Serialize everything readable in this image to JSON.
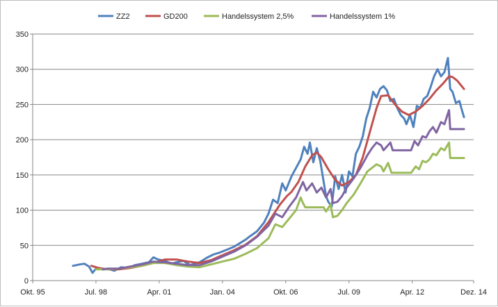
{
  "chart_data": {
    "type": "line",
    "title": "",
    "xlabel": "",
    "ylabel": "",
    "ylim": [
      0,
      350
    ],
    "y_ticks": [
      "0",
      "50",
      "100",
      "150",
      "200",
      "250",
      "300",
      "350"
    ],
    "x_ticks": [
      "Okt. 95",
      "Jul. 98",
      "Apr. 01",
      "Jan. 04",
      "Okt. 06",
      "Jul. 09",
      "Apr. 12",
      "Dez. 14"
    ],
    "x_tick_years": [
      1995.75,
      1998.5,
      2001.25,
      2004.0,
      2006.75,
      2009.5,
      2012.25,
      2014.92
    ],
    "grid": true,
    "legend_position": "top",
    "series": [
      {
        "name": "ZZ2",
        "color": "#4f81bd",
        "points": [
          [
            1997.5,
            21
          ],
          [
            1997.8,
            23
          ],
          [
            1998.0,
            24
          ],
          [
            1998.2,
            20
          ],
          [
            1998.35,
            11
          ],
          [
            1998.5,
            17
          ],
          [
            1998.8,
            16
          ],
          [
            1999.0,
            17
          ],
          [
            1999.3,
            14
          ],
          [
            1999.6,
            19
          ],
          [
            1999.9,
            18
          ],
          [
            2000.2,
            22
          ],
          [
            2000.5,
            24
          ],
          [
            2000.8,
            26
          ],
          [
            2001.0,
            33
          ],
          [
            2001.2,
            30
          ],
          [
            2001.5,
            28
          ],
          [
            2001.8,
            24
          ],
          [
            2002.0,
            26
          ],
          [
            2002.3,
            28
          ],
          [
            2002.6,
            22
          ],
          [
            2002.8,
            24
          ],
          [
            2003.0,
            26
          ],
          [
            2003.3,
            32
          ],
          [
            2003.6,
            37
          ],
          [
            2003.9,
            40
          ],
          [
            2004.2,
            44
          ],
          [
            2004.5,
            48
          ],
          [
            2004.8,
            54
          ],
          [
            2005.0,
            58
          ],
          [
            2005.2,
            63
          ],
          [
            2005.5,
            70
          ],
          [
            2005.8,
            82
          ],
          [
            2006.0,
            95
          ],
          [
            2006.2,
            115
          ],
          [
            2006.4,
            110
          ],
          [
            2006.6,
            138
          ],
          [
            2006.75,
            128
          ],
          [
            2007.0,
            148
          ],
          [
            2007.2,
            160
          ],
          [
            2007.4,
            172
          ],
          [
            2007.55,
            190
          ],
          [
            2007.7,
            180
          ],
          [
            2007.8,
            196
          ],
          [
            2007.95,
            168
          ],
          [
            2008.1,
            188
          ],
          [
            2008.25,
            170
          ],
          [
            2008.4,
            140
          ],
          [
            2008.5,
            120
          ],
          [
            2008.6,
            112
          ],
          [
            2008.75,
            105
          ],
          [
            2008.9,
            148
          ],
          [
            2009.05,
            130
          ],
          [
            2009.2,
            150
          ],
          [
            2009.35,
            125
          ],
          [
            2009.5,
            155
          ],
          [
            2009.65,
            148
          ],
          [
            2009.8,
            180
          ],
          [
            2009.95,
            190
          ],
          [
            2010.1,
            205
          ],
          [
            2010.25,
            230
          ],
          [
            2010.4,
            245
          ],
          [
            2010.55,
            268
          ],
          [
            2010.7,
            260
          ],
          [
            2010.85,
            272
          ],
          [
            2011.0,
            276
          ],
          [
            2011.15,
            270
          ],
          [
            2011.3,
            255
          ],
          [
            2011.45,
            258
          ],
          [
            2011.6,
            245
          ],
          [
            2011.75,
            235
          ],
          [
            2011.9,
            230
          ],
          [
            2012.0,
            222
          ],
          [
            2012.15,
            235
          ],
          [
            2012.3,
            218
          ],
          [
            2012.45,
            248
          ],
          [
            2012.6,
            245
          ],
          [
            2012.75,
            258
          ],
          [
            2012.9,
            262
          ],
          [
            2013.05,
            275
          ],
          [
            2013.2,
            290
          ],
          [
            2013.35,
            300
          ],
          [
            2013.5,
            290
          ],
          [
            2013.65,
            296
          ],
          [
            2013.8,
            316
          ],
          [
            2013.9,
            272
          ],
          [
            2014.0,
            268
          ],
          [
            2014.15,
            252
          ],
          [
            2014.3,
            255
          ],
          [
            2014.4,
            243
          ],
          [
            2014.5,
            232
          ]
        ]
      },
      {
        "name": "GD200",
        "color": "#c0504d",
        "points": [
          [
            1998.3,
            21
          ],
          [
            1998.6,
            18
          ],
          [
            1999.0,
            16
          ],
          [
            1999.5,
            16
          ],
          [
            2000.0,
            18
          ],
          [
            2000.5,
            21
          ],
          [
            2001.0,
            25
          ],
          [
            2001.5,
            30
          ],
          [
            2002.0,
            30
          ],
          [
            2002.5,
            27
          ],
          [
            2003.0,
            25
          ],
          [
            2003.5,
            29
          ],
          [
            2004.0,
            36
          ],
          [
            2004.5,
            43
          ],
          [
            2005.0,
            51
          ],
          [
            2005.5,
            63
          ],
          [
            2006.0,
            83
          ],
          [
            2006.5,
            108
          ],
          [
            2006.8,
            120
          ],
          [
            2007.0,
            126
          ],
          [
            2007.3,
            140
          ],
          [
            2007.6,
            162
          ],
          [
            2007.9,
            178
          ],
          [
            2008.1,
            182
          ],
          [
            2008.3,
            175
          ],
          [
            2008.6,
            158
          ],
          [
            2008.9,
            143
          ],
          [
            2009.2,
            135
          ],
          [
            2009.5,
            140
          ],
          [
            2009.8,
            150
          ],
          [
            2010.1,
            175
          ],
          [
            2010.4,
            210
          ],
          [
            2010.7,
            245
          ],
          [
            2010.9,
            262
          ],
          [
            2011.2,
            263
          ],
          [
            2011.5,
            250
          ],
          [
            2011.8,
            240
          ],
          [
            2012.1,
            235
          ],
          [
            2012.4,
            240
          ],
          [
            2012.7,
            248
          ],
          [
            2013.0,
            258
          ],
          [
            2013.3,
            270
          ],
          [
            2013.6,
            280
          ],
          [
            2013.85,
            290
          ],
          [
            2014.0,
            289
          ],
          [
            2014.2,
            284
          ],
          [
            2014.5,
            272
          ]
        ]
      },
      {
        "name": "Handelssystem 2,5%",
        "color": "#9bbb59",
        "points": [
          [
            1998.5,
            16
          ],
          [
            1999.0,
            16
          ],
          [
            1999.5,
            17
          ],
          [
            2000.0,
            19
          ],
          [
            2000.5,
            21
          ],
          [
            2001.0,
            25
          ],
          [
            2001.5,
            25
          ],
          [
            2002.0,
            22
          ],
          [
            2002.5,
            20
          ],
          [
            2003.0,
            19
          ],
          [
            2003.5,
            23
          ],
          [
            2004.0,
            27
          ],
          [
            2004.5,
            31
          ],
          [
            2005.0,
            38
          ],
          [
            2005.5,
            46
          ],
          [
            2006.0,
            60
          ],
          [
            2006.3,
            80
          ],
          [
            2006.6,
            76
          ],
          [
            2006.9,
            88
          ],
          [
            2007.2,
            100
          ],
          [
            2007.4,
            118
          ],
          [
            2007.5,
            110
          ],
          [
            2007.6,
            104
          ],
          [
            2008.4,
            104
          ],
          [
            2008.5,
            98
          ],
          [
            2008.7,
            108
          ],
          [
            2008.8,
            90
          ],
          [
            2009.0,
            92
          ],
          [
            2009.2,
            100
          ],
          [
            2009.4,
            110
          ],
          [
            2009.7,
            122
          ],
          [
            2010.0,
            138
          ],
          [
            2010.3,
            155
          ],
          [
            2010.5,
            160
          ],
          [
            2010.7,
            165
          ],
          [
            2010.9,
            162
          ],
          [
            2011.0,
            155
          ],
          [
            2011.2,
            167
          ],
          [
            2011.35,
            153
          ],
          [
            2012.2,
            153
          ],
          [
            2012.4,
            162
          ],
          [
            2012.55,
            158
          ],
          [
            2012.7,
            170
          ],
          [
            2012.85,
            168
          ],
          [
            2013.0,
            172
          ],
          [
            2013.15,
            180
          ],
          [
            2013.3,
            178
          ],
          [
            2013.5,
            188
          ],
          [
            2013.65,
            185
          ],
          [
            2013.85,
            196
          ],
          [
            2013.9,
            174
          ],
          [
            2014.5,
            174
          ]
        ]
      },
      {
        "name": "Handelssystem 1%",
        "color": "#8064a2",
        "points": [
          [
            1998.8,
            16
          ],
          [
            1999.0,
            17
          ],
          [
            1999.5,
            17
          ],
          [
            2000.0,
            20
          ],
          [
            2000.5,
            23
          ],
          [
            2001.0,
            27
          ],
          [
            2001.5,
            26
          ],
          [
            2002.0,
            24
          ],
          [
            2002.5,
            22
          ],
          [
            2003.0,
            22
          ],
          [
            2003.5,
            27
          ],
          [
            2004.0,
            34
          ],
          [
            2004.5,
            41
          ],
          [
            2005.0,
            50
          ],
          [
            2005.5,
            62
          ],
          [
            2006.0,
            78
          ],
          [
            2006.3,
            95
          ],
          [
            2006.6,
            90
          ],
          [
            2006.9,
            105
          ],
          [
            2007.2,
            118
          ],
          [
            2007.5,
            140
          ],
          [
            2007.65,
            128
          ],
          [
            2007.9,
            138
          ],
          [
            2008.1,
            125
          ],
          [
            2008.3,
            132
          ],
          [
            2008.5,
            118
          ],
          [
            2008.7,
            130
          ],
          [
            2008.8,
            110
          ],
          [
            2009.0,
            112
          ],
          [
            2009.2,
            120
          ],
          [
            2009.4,
            132
          ],
          [
            2009.7,
            145
          ],
          [
            2010.0,
            160
          ],
          [
            2010.3,
            178
          ],
          [
            2010.5,
            188
          ],
          [
            2010.7,
            196
          ],
          [
            2010.9,
            192
          ],
          [
            2011.0,
            185
          ],
          [
            2011.3,
            196
          ],
          [
            2011.4,
            185
          ],
          [
            2012.2,
            185
          ],
          [
            2012.35,
            198
          ],
          [
            2012.5,
            192
          ],
          [
            2012.7,
            205
          ],
          [
            2012.85,
            203
          ],
          [
            2013.0,
            212
          ],
          [
            2013.15,
            218
          ],
          [
            2013.3,
            210
          ],
          [
            2013.5,
            225
          ],
          [
            2013.65,
            222
          ],
          [
            2013.85,
            242
          ],
          [
            2013.9,
            215
          ],
          [
            2014.5,
            215
          ]
        ]
      }
    ]
  }
}
